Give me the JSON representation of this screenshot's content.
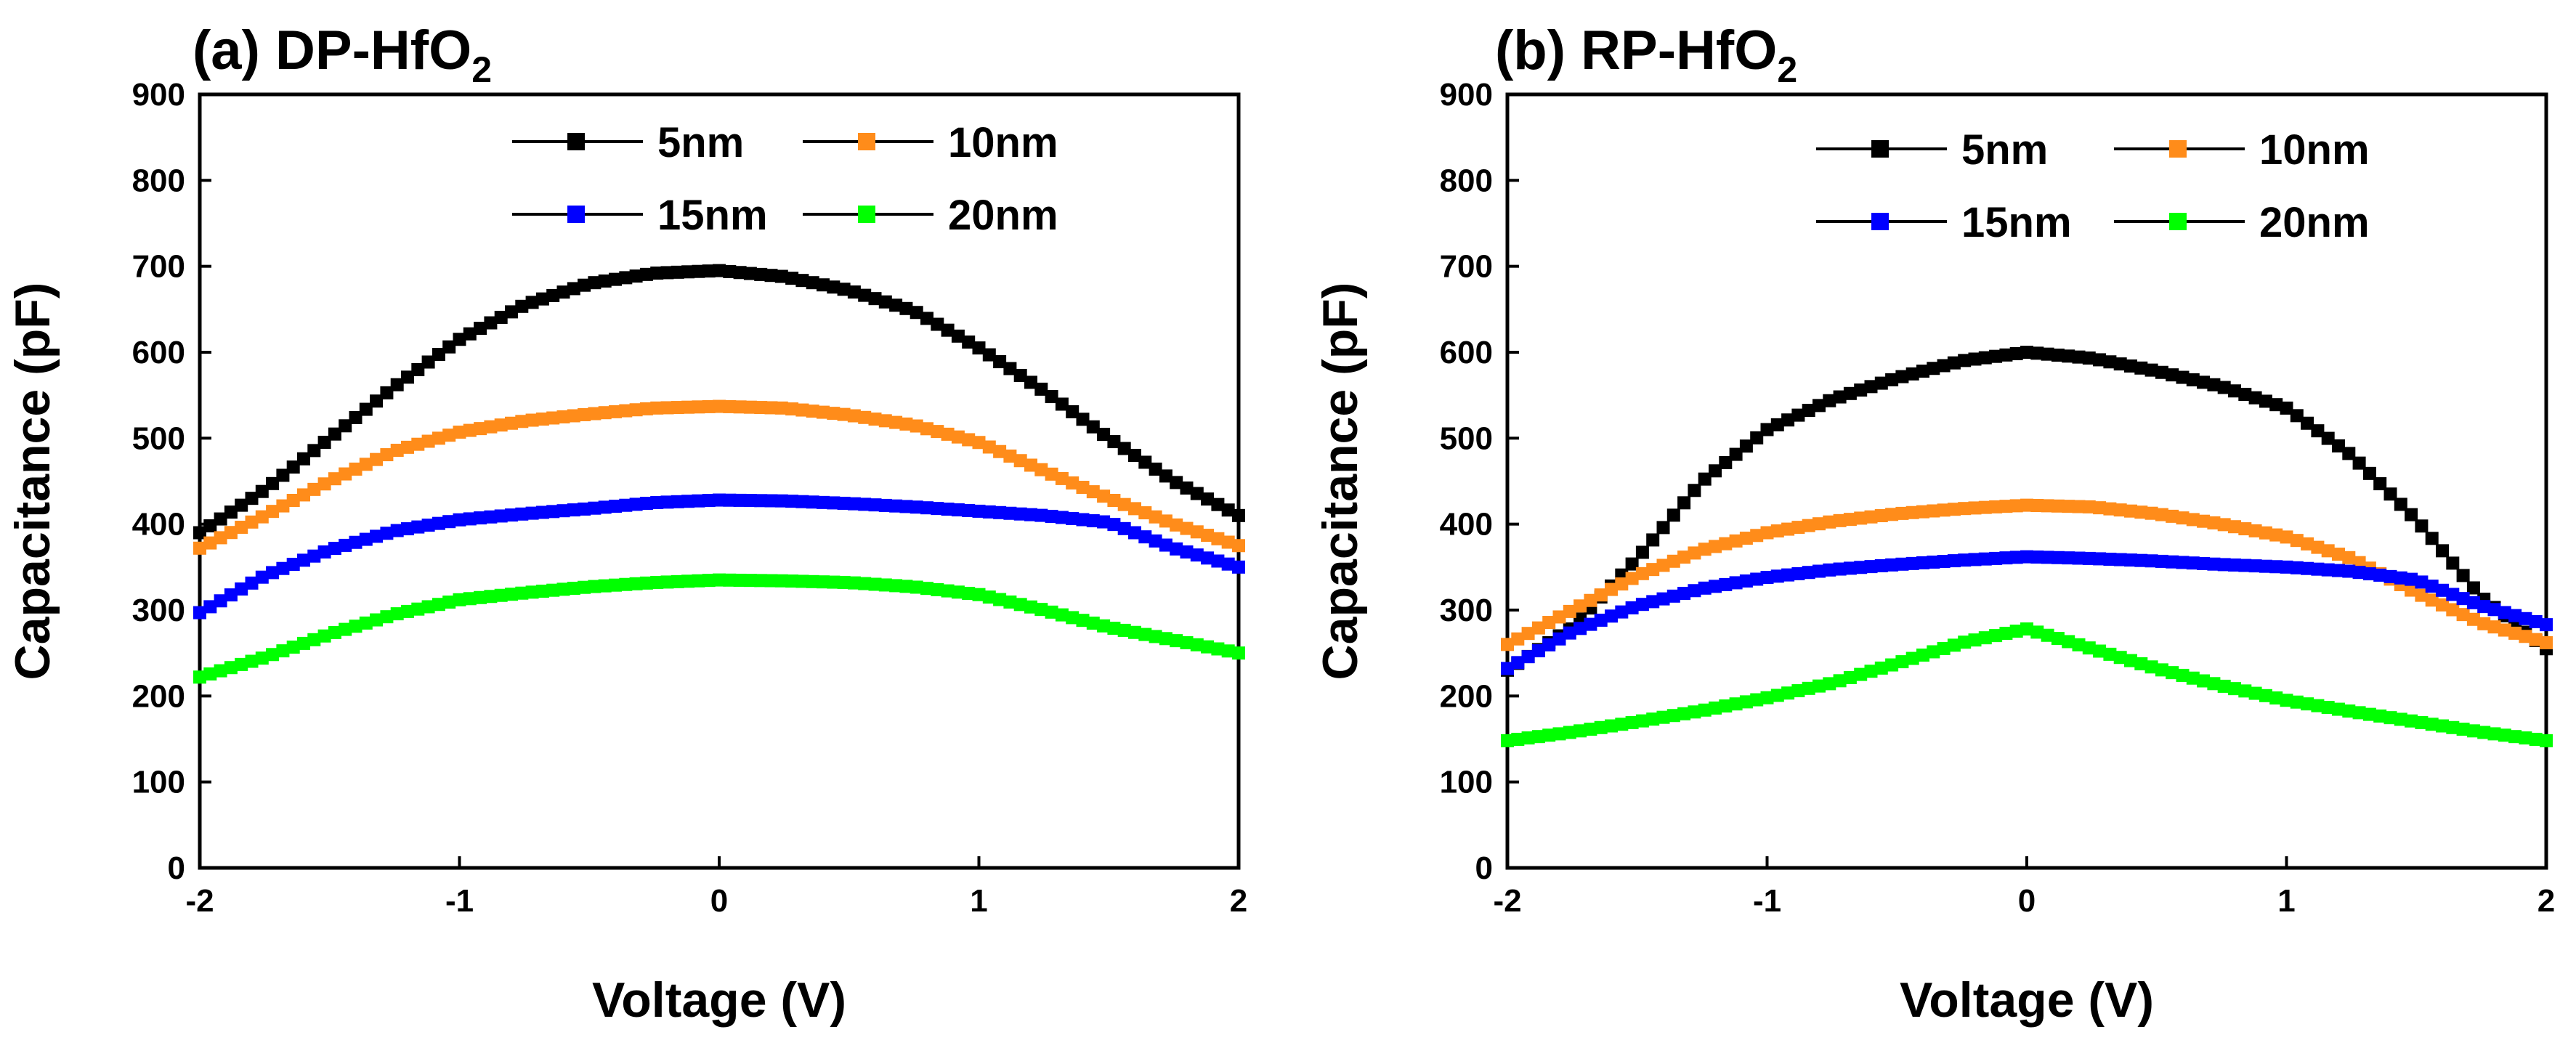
{
  "chart_data": [
    {
      "type": "line",
      "panel_label": "(a)",
      "title": "DP-HfO",
      "title_subscript": "2",
      "xlabel": "Voltage (V)",
      "ylabel": "Capacitance (pF)",
      "xlim": [
        -2,
        2
      ],
      "ylim": [
        0,
        900
      ],
      "x_ticks": [
        "-2",
        "-1",
        "0",
        "1",
        "2"
      ],
      "y_ticks": [
        "0",
        "100",
        "200",
        "300",
        "400",
        "500",
        "600",
        "700",
        "800",
        "900"
      ],
      "legend_position": "top-right",
      "x": [
        -2.0,
        -1.75,
        -1.5,
        -1.25,
        -1.0,
        -0.75,
        -0.5,
        -0.25,
        0.0,
        0.25,
        0.5,
        0.75,
        1.0,
        1.25,
        1.5,
        1.75,
        2.0
      ],
      "series": [
        {
          "name": "5nm",
          "color": "#000000",
          "values": [
            390,
            440,
            500,
            560,
            615,
            655,
            680,
            692,
            695,
            688,
            672,
            648,
            605,
            555,
            500,
            450,
            410
          ]
        },
        {
          "name": "10nm",
          "color": "#ff8c1a",
          "values": [
            372,
            410,
            450,
            485,
            507,
            520,
            528,
            535,
            537,
            535,
            527,
            515,
            495,
            462,
            430,
            400,
            375
          ]
        },
        {
          "name": "15nm",
          "color": "#0000ff",
          "values": [
            297,
            340,
            370,
            392,
            405,
            412,
            418,
            425,
            428,
            427,
            424,
            420,
            415,
            410,
            402,
            372,
            350
          ]
        },
        {
          "name": "20nm",
          "color": "#00ff00",
          "values": [
            222,
            245,
            272,
            295,
            312,
            320,
            327,
            332,
            335,
            334,
            332,
            327,
            318,
            300,
            280,
            265,
            250
          ]
        }
      ]
    },
    {
      "type": "line",
      "panel_label": "(b)",
      "title": "RP-HfO",
      "title_subscript": "2",
      "xlabel": "Voltage (V)",
      "ylabel": "Capacitance (pF)",
      "xlim": [
        -2,
        2
      ],
      "ylim": [
        0,
        900
      ],
      "x_ticks": [
        "-2",
        "-1",
        "0",
        "1",
        "2"
      ],
      "y_ticks": [
        "0",
        "100",
        "200",
        "300",
        "400",
        "500",
        "600",
        "700",
        "800",
        "900"
      ],
      "legend_position": "top-right",
      "x": [
        -2.0,
        -1.75,
        -1.5,
        -1.25,
        -1.0,
        -0.75,
        -0.5,
        -0.25,
        0.0,
        0.25,
        0.5,
        0.75,
        1.0,
        1.25,
        1.5,
        1.75,
        2.0
      ],
      "series": [
        {
          "name": "5nm",
          "color": "#000000",
          "values": [
            230,
            280,
            360,
            450,
            510,
            545,
            570,
            590,
            600,
            593,
            578,
            560,
            535,
            480,
            405,
            315,
            255
          ]
        },
        {
          "name": "10nm",
          "color": "#ff8c1a",
          "values": [
            260,
            300,
            340,
            370,
            390,
            403,
            412,
            418,
            422,
            420,
            412,
            400,
            385,
            360,
            320,
            285,
            262
          ]
        },
        {
          "name": "15nm",
          "color": "#0000ff",
          "values": [
            232,
            275,
            305,
            325,
            338,
            347,
            353,
            358,
            362,
            360,
            357,
            353,
            350,
            345,
            335,
            305,
            283
          ]
        },
        {
          "name": "20nm",
          "color": "#00ff00",
          "values": [
            148,
            158,
            170,
            183,
            198,
            215,
            238,
            262,
            278,
            255,
            232,
            212,
            195,
            182,
            170,
            158,
            148
          ]
        }
      ]
    }
  ]
}
